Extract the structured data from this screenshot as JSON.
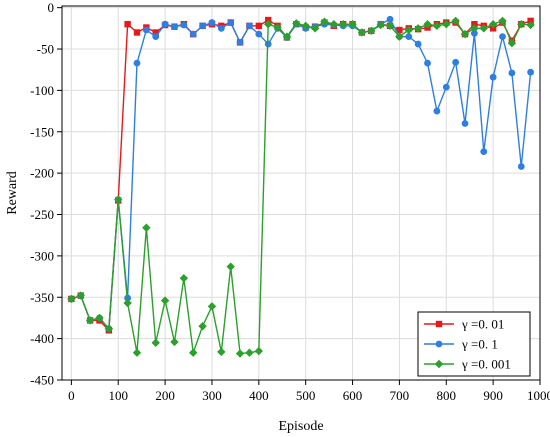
{
  "chart_data": {
    "type": "line",
    "xlabel": "Episode",
    "ylabel": "Reward",
    "xlim": [
      -20,
      1000
    ],
    "ylim": [
      -450,
      2
    ],
    "xticks": [
      0,
      100,
      200,
      300,
      400,
      500,
      600,
      700,
      800,
      900,
      1000
    ],
    "yticks": [
      0,
      -50,
      -100,
      -150,
      -200,
      -250,
      -300,
      -350,
      -400,
      -450
    ],
    "grid": true,
    "legend_position": "bottom-right",
    "x": [
      0,
      20,
      40,
      60,
      80,
      100,
      120,
      140,
      160,
      180,
      200,
      220,
      240,
      260,
      280,
      300,
      320,
      340,
      360,
      380,
      400,
      420,
      440,
      460,
      480,
      500,
      520,
      540,
      560,
      580,
      600,
      620,
      640,
      660,
      680,
      700,
      720,
      740,
      760,
      780,
      800,
      820,
      840,
      860,
      880,
      900,
      920,
      940,
      960,
      980
    ],
    "series": [
      {
        "name": "γ =0. 01",
        "color": "#e41a1c",
        "marker": "square",
        "values": [
          -352,
          -348,
          -378,
          -378,
          -390,
          -233,
          -20,
          -30,
          -24,
          -30,
          -21,
          -23,
          -20,
          -32,
          -22,
          -20,
          -22,
          -18,
          -42,
          -22,
          -22,
          -15,
          -22,
          -36,
          -20,
          -24,
          -23,
          -18,
          -22,
          -20,
          -20,
          -30,
          -28,
          -20,
          -22,
          -27,
          -25,
          -26,
          -24,
          -20,
          -18,
          -18,
          -32,
          -20,
          -22,
          -25,
          -18,
          -40,
          -20,
          -16
        ]
      },
      {
        "name": "γ =0. 1",
        "color": "#2f7fe0",
        "marker": "circle",
        "values": [
          -352,
          -348,
          -378,
          -375,
          -388,
          -232,
          -351,
          -67,
          -27,
          -35,
          -20,
          -23,
          -21,
          -32,
          -22,
          -18,
          -25,
          -18,
          -42,
          -22,
          -32,
          -44,
          -25,
          -36,
          -20,
          -25,
          -23,
          -20,
          -21,
          -22,
          -22,
          -30,
          -28,
          -20,
          -14,
          -35,
          -35,
          -44,
          -67,
          -125,
          -96,
          -66,
          -140,
          -31,
          -174,
          -84,
          -35,
          -79,
          -192,
          -78
        ]
      },
      {
        "name": "γ =0. 001",
        "color": "#2ca02c",
        "marker": "diamond",
        "values": [
          -352,
          -348,
          -378,
          -375,
          -388,
          -232,
          -357,
          -417,
          -266,
          -405,
          -354,
          -404,
          -327,
          -417,
          -385,
          -361,
          -416,
          -313,
          -418,
          -417,
          -415,
          -20,
          -24,
          -35,
          -19,
          -22,
          -25,
          -17,
          -20,
          -20,
          -20,
          -30,
          -28,
          -21,
          -22,
          -35,
          -27,
          -25,
          -20,
          -22,
          -20,
          -16,
          -32,
          -25,
          -25,
          -20,
          -16,
          -43,
          -20,
          -21
        ]
      }
    ]
  }
}
